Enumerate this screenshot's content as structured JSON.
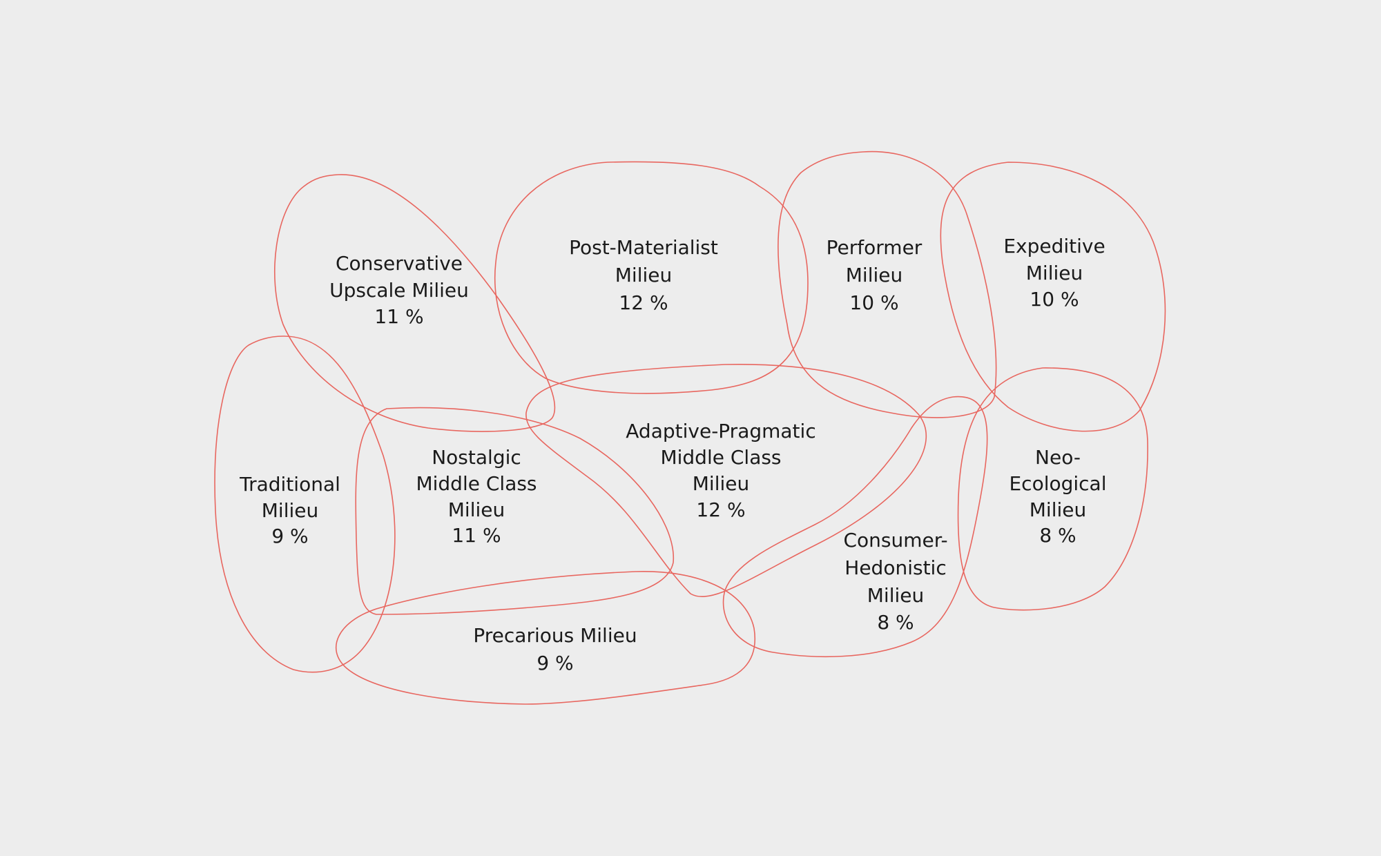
{
  "stroke_color": "#e8665f",
  "background_color": "#ededed",
  "text_color": "#1a1a1a",
  "milieus": [
    {
      "id": "conservative-upscale",
      "lines": [
        "Conservative",
        "Upscale Milieu"
      ],
      "share": "11 %"
    },
    {
      "id": "post-materialist",
      "lines": [
        "Post-Materialist",
        "Milieu"
      ],
      "share": "12 %"
    },
    {
      "id": "performer",
      "lines": [
        "Performer",
        "Milieu"
      ],
      "share": "10 %"
    },
    {
      "id": "expeditive",
      "lines": [
        "Expeditive",
        "Milieu"
      ],
      "share": "10 %"
    },
    {
      "id": "traditional",
      "lines": [
        "Traditional",
        "Milieu"
      ],
      "share": "9 %"
    },
    {
      "id": "nostalgic-middle-class",
      "lines": [
        "Nostalgic",
        "Middle Class",
        "Milieu"
      ],
      "share": "11 %"
    },
    {
      "id": "adaptive-pragmatic",
      "lines": [
        "Adaptive-Pragmatic",
        "Middle Class",
        "Milieu"
      ],
      "share": "12 %"
    },
    {
      "id": "neo-ecological",
      "lines": [
        "Neo-",
        "Ecological",
        "Milieu"
      ],
      "share": "8 %"
    },
    {
      "id": "consumer-hedonistic",
      "lines": [
        "Consumer-",
        "Hedonistic",
        "Milieu"
      ],
      "share": "8 %"
    },
    {
      "id": "precarious",
      "lines": [
        "Precarious Milieu"
      ],
      "share": "9 %"
    }
  ]
}
